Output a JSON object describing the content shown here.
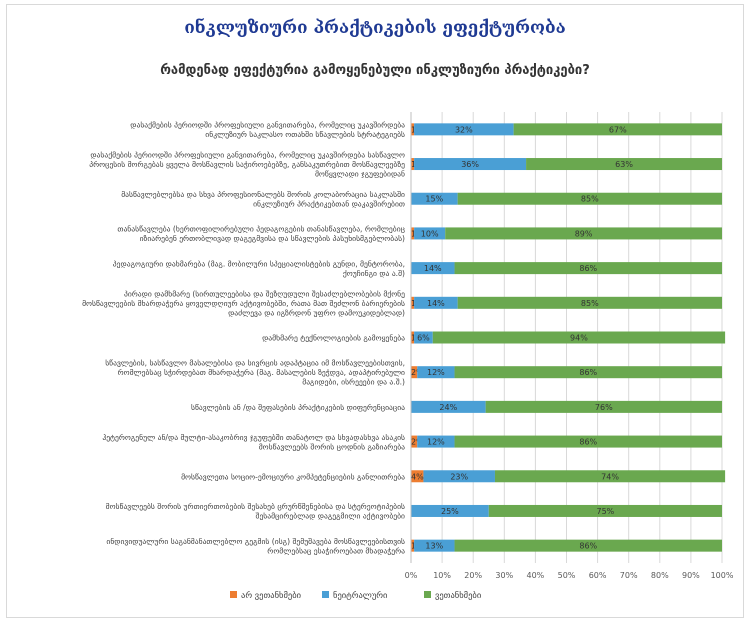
{
  "title": "ინკლუზიური პრაქტიკების ეფექტურობა",
  "chart_data": {
    "type": "bar",
    "orientation": "horizontal",
    "stacked": "percent",
    "title": "რამდენად ეფექტურია გამოყენებული ინკლუზიური პრაქტიკები?",
    "categories": [
      [
        "დასაქმების პერიოდში პროფესიული განვითარება, რომელიც უკავშირდება",
        "ინკლუზიურ საკლასო ოთახში სწავლების სტრატეგიებს"
      ],
      [
        "დასაქმების პერიოდში პროფესიული განვითარება, რომელიც უკავშირდება სასწავლო",
        "პროცესის მორგებას ყველა მოსწავლის საჭიროებებზე, განსაკუთრებით მოსწავლეებზე",
        "მოწყვლადი ჯგუფებიდან"
      ],
      [
        "მასწავლებლებსა და სხვა პროფესიონალებს შორის კოლაბორაცია საკლასში",
        "ინკლუზიურ პრაქტიკებთან დაკავშირებით"
      ],
      [
        "თანასწავლება (ხერთოფილირებული პედაგოგების თანასწავლება, რომლებიც",
        "იზიარებენ ერთობლივად დაგეგმვისა და სწავლების პასუხისმგებლობას)"
      ],
      [
        "პედაგოგიური დახმარება (მაგ. მობილური სპეციალისტების გუნდი, მენტორობა,",
        "ქოუჩინგი და ა.შ)"
      ],
      [
        "პირადი დამხმარე (სირთულეებისა და შეზღუდული შესაძლებლობების მქონე",
        "მოსწავლეების მხარდაჭერა ყოველდღიურ აქტივობებში, რათა მათ შეძლონ ბარიერების",
        "დაძლევა და იგზრდონ უფრო დამოუკიდებლად)"
      ],
      [
        "დამხმარე ტექნოლოგიების გამოყენება"
      ],
      [
        "სწავლების, სასწავლო მასალებისა და სივრცის ადაპტაცია იმ მოსწავლეებისთვის,",
        "რომლებსაც სჭირდებათ მხარდაჭერა (მაგ. მასალების ზეჭდვა, ადაპტირებული",
        "მაგიდები, ისრეეები და ა.შ.)"
      ],
      [
        "სწავლების ან /და შეფასების პრაქტიკების დიფერენციაცია"
      ],
      [
        "ჰეტეროგენულ ან/და მულტი-ასაკობრივ ჯგუფებში თანატოლ და სხვადასხვა ასაკის",
        "მოსწავლეებს შორის ცოდნის გაზიარება"
      ],
      [
        "მოსწავლეთა სოციო-ემოციური კომპეტენციების განლითრება"
      ],
      [
        "მოსწავლეებს შორის ურთიერთობების შესახებ ცრურწმენებისა და სტერეოტიპების",
        "შესამცირებლად დაგეგმილი აქტივობები"
      ],
      [
        "ინდივიდუალური საგანმანათლებლო გეგმის (ისგ) შემუშავება მოსწავლეებისთვის",
        "რომლებსაც ესაჭიროებათ მხადაჭერა"
      ]
    ],
    "series": [
      {
        "name": "არ ვეთანხმები",
        "color": "#ed7d31",
        "values": [
          1,
          1,
          0,
          1,
          0,
          1,
          1,
          2,
          0,
          2,
          4,
          0,
          1
        ]
      },
      {
        "name": "ნეიტრალური",
        "color": "#4a9fd5",
        "values": [
          32,
          36,
          15,
          10,
          14,
          14,
          6,
          12,
          24,
          12,
          23,
          25,
          13
        ]
      },
      {
        "name": "ვეთანხმები",
        "color": "#6aa84f",
        "values": [
          67,
          63,
          85,
          89,
          86,
          85,
          94,
          86,
          76,
          86,
          74,
          75,
          86
        ]
      }
    ],
    "value_labels": [
      [
        "1%",
        "32%",
        "67%"
      ],
      [
        "1%",
        "36%",
        "63%"
      ],
      [
        "0%",
        "15%",
        "85%"
      ],
      [
        "1%",
        "10%",
        "89%"
      ],
      [
        "0%",
        "14%",
        "86%"
      ],
      [
        "1%",
        "14%",
        "85%"
      ],
      [
        "1%",
        "6%",
        "94%"
      ],
      [
        "2%",
        "12%",
        "86%"
      ],
      [
        "0%",
        "24%",
        "76%"
      ],
      [
        "2%",
        "12%",
        "86%"
      ],
      [
        "4%",
        "23%",
        "74%"
      ],
      [
        "0%",
        "25%",
        "75%"
      ],
      [
        "1%",
        "13%",
        "86%"
      ]
    ],
    "xticks": [
      "0%",
      "10%",
      "20%",
      "30%",
      "40%",
      "50%",
      "60%",
      "70%",
      "80%",
      "90%",
      "100%"
    ],
    "xlim": [
      0,
      100
    ],
    "grid": true,
    "legend_position": "bottom"
  }
}
